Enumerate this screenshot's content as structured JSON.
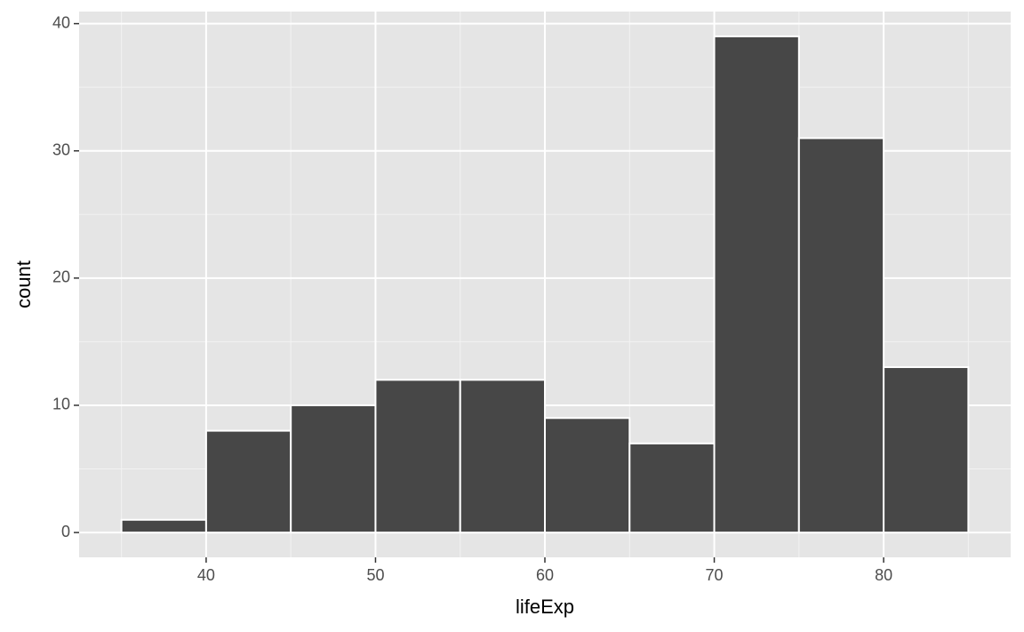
{
  "chart_data": {
    "type": "histogram",
    "x_label": "lifeExp",
    "y_label": "count",
    "bins": [
      35,
      40,
      45,
      50,
      55,
      60,
      65,
      70,
      75,
      80,
      85
    ],
    "values": [
      1,
      8,
      10,
      12,
      12,
      9,
      7,
      39,
      31,
      13
    ],
    "color": "#474747",
    "xlim": [
      32.5,
      87.5
    ],
    "xticks": [
      40,
      50,
      60,
      70,
      80
    ],
    "ylim": [
      -1.95,
      40.95
    ],
    "yticks": [
      0,
      10,
      20,
      30,
      40
    ],
    "grid": true
  }
}
